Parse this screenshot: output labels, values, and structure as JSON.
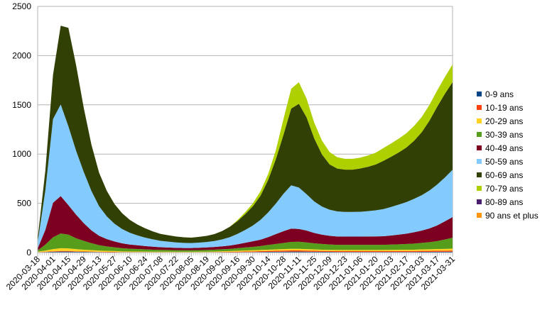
{
  "chart_data": {
    "type": "area",
    "stacked": true,
    "title": "",
    "xlabel": "",
    "ylabel": "",
    "ylim": [
      0,
      2500
    ],
    "yticks": [
      0,
      500,
      1000,
      1500,
      2000,
      2500
    ],
    "grid": "horizontal",
    "legend_position": "right",
    "x_tick_labels": [
      "2020-03-18",
      "2020-04-01",
      "2020-04-15",
      "2020-04-29",
      "2020-05-13",
      "2020-05-27",
      "2020-06-10",
      "2020-06-24",
      "2020-07-08",
      "2020-07-22",
      "2020-08-05",
      "2020-08-19",
      "2020-09-02",
      "2020-09-16",
      "2020-09-30",
      "2020-10-14",
      "2020-10-28",
      "2020-11-11",
      "2020-11-25",
      "2020-12-09",
      "2020-12-23",
      "2021-01-06",
      "2021-01-20",
      "2021-02-03",
      "2021-02-17",
      "2021-03-03",
      "2021-03-17",
      "2021-03-31"
    ],
    "x": [
      "2020-03-18",
      "2020-03-25",
      "2020-04-01",
      "2020-04-08",
      "2020-04-15",
      "2020-04-22",
      "2020-04-29",
      "2020-05-06",
      "2020-05-13",
      "2020-05-20",
      "2020-05-27",
      "2020-06-03",
      "2020-06-10",
      "2020-06-17",
      "2020-06-24",
      "2020-07-01",
      "2020-07-08",
      "2020-07-15",
      "2020-07-22",
      "2020-07-29",
      "2020-08-05",
      "2020-08-12",
      "2020-08-19",
      "2020-08-26",
      "2020-09-02",
      "2020-09-09",
      "2020-09-16",
      "2020-09-23",
      "2020-09-30",
      "2020-10-07",
      "2020-10-14",
      "2020-10-21",
      "2020-10-28",
      "2020-11-04",
      "2020-11-11",
      "2020-11-18",
      "2020-11-25",
      "2020-12-02",
      "2020-12-09",
      "2020-12-16",
      "2020-12-23",
      "2020-12-30",
      "2021-01-06",
      "2021-01-13",
      "2021-01-20",
      "2021-01-27",
      "2021-02-03",
      "2021-02-10",
      "2021-02-17",
      "2021-02-24",
      "2021-03-03",
      "2021-03-10",
      "2021-03-17",
      "2021-03-24",
      "2021-03-31"
    ],
    "series": [
      {
        "name": "0-9 ans",
        "color": "#004586",
        "values": [
          2,
          5,
          8,
          10,
          10,
          8,
          7,
          6,
          5,
          4,
          4,
          3,
          3,
          3,
          3,
          2,
          2,
          2,
          2,
          2,
          2,
          2,
          2,
          2,
          3,
          3,
          4,
          5,
          5,
          6,
          7,
          8,
          9,
          10,
          10,
          9,
          8,
          7,
          7,
          6,
          6,
          6,
          6,
          6,
          6,
          6,
          6,
          6,
          6,
          6,
          7,
          7,
          8,
          8,
          9
        ]
      },
      {
        "name": "10-19 ans",
        "color": "#ff420e",
        "values": [
          2,
          3,
          5,
          6,
          6,
          5,
          4,
          4,
          3,
          3,
          3,
          2,
          2,
          2,
          2,
          2,
          2,
          2,
          2,
          2,
          2,
          2,
          2,
          3,
          3,
          4,
          5,
          6,
          7,
          8,
          9,
          10,
          11,
          12,
          12,
          11,
          10,
          9,
          8,
          8,
          8,
          8,
          8,
          8,
          8,
          8,
          8,
          9,
          9,
          9,
          10,
          10,
          11,
          11,
          12
        ]
      },
      {
        "name": "20-29 ans",
        "color": "#ffd320",
        "values": [
          5,
          12,
          22,
          28,
          26,
          22,
          18,
          15,
          12,
          10,
          8,
          7,
          6,
          6,
          5,
          5,
          5,
          5,
          4,
          4,
          4,
          5,
          5,
          6,
          7,
          8,
          9,
          10,
          11,
          12,
          13,
          14,
          15,
          16,
          16,
          15,
          14,
          13,
          12,
          12,
          12,
          12,
          12,
          12,
          12,
          12,
          13,
          13,
          14,
          14,
          15,
          16,
          17,
          18,
          19
        ]
      },
      {
        "name": "30-39 ans",
        "color": "#579d1c",
        "values": [
          12,
          60,
          120,
          150,
          140,
          110,
          90,
          70,
          55,
          45,
          38,
          32,
          28,
          25,
          22,
          20,
          18,
          17,
          16,
          15,
          15,
          16,
          17,
          18,
          20,
          22,
          26,
          30,
          35,
          40,
          48,
          55,
          62,
          70,
          72,
          68,
          62,
          58,
          55,
          52,
          52,
          52,
          52,
          52,
          52,
          52,
          54,
          56,
          58,
          62,
          66,
          72,
          80,
          95,
          110
        ]
      },
      {
        "name": "40-49 ans",
        "color": "#7e0021",
        "values": [
          20,
          150,
          350,
          380,
          300,
          240,
          180,
          130,
          95,
          75,
          60,
          50,
          42,
          38,
          34,
          30,
          27,
          25,
          24,
          23,
          23,
          24,
          26,
          28,
          30,
          34,
          40,
          48,
          56,
          65,
          80,
          100,
          120,
          135,
          130,
          120,
          105,
          95,
          88,
          85,
          84,
          84,
          84,
          85,
          86,
          88,
          92,
          98,
          105,
          115,
          125,
          140,
          160,
          185,
          210
        ]
      },
      {
        "name": "50-59 ans",
        "color": "#83caff",
        "values": [
          60,
          400,
          850,
          930,
          800,
          650,
          520,
          400,
          300,
          230,
          180,
          145,
          120,
          100,
          85,
          75,
          65,
          60,
          55,
          52,
          50,
          52,
          55,
          60,
          70,
          85,
          105,
          130,
          160,
          200,
          250,
          310,
          380,
          440,
          420,
          370,
          320,
          285,
          265,
          255,
          250,
          250,
          252,
          258,
          265,
          275,
          290,
          305,
          320,
          340,
          360,
          385,
          415,
          445,
          480
        ]
      },
      {
        "name": "60-69 ans",
        "color": "#314004",
        "values": [
          40,
          200,
          450,
          800,
          1000,
          870,
          650,
          470,
          340,
          260,
          200,
          160,
          130,
          110,
          95,
          80,
          70,
          65,
          60,
          57,
          55,
          58,
          62,
          70,
          85,
          105,
          130,
          160,
          195,
          245,
          330,
          450,
          600,
          780,
          850,
          780,
          640,
          530,
          460,
          435,
          430,
          430,
          440,
          450,
          465,
          490,
          510,
          530,
          555,
          590,
          640,
          710,
          790,
          850,
          890
        ]
      },
      {
        "name": "70-79 ans",
        "color": "#aecf00",
        "values": [
          0,
          0,
          0,
          0,
          0,
          0,
          0,
          0,
          0,
          0,
          0,
          0,
          0,
          0,
          0,
          0,
          0,
          0,
          0,
          0,
          0,
          0,
          0,
          0,
          0,
          0,
          10,
          20,
          30,
          45,
          60,
          90,
          160,
          200,
          220,
          190,
          160,
          140,
          125,
          115,
          110,
          110,
          110,
          115,
          120,
          130,
          135,
          140,
          145,
          150,
          155,
          160,
          165,
          170,
          180
        ]
      },
      {
        "name": "80-89 ans",
        "color": "#4b1f6f",
        "values": [
          0,
          0,
          0,
          0,
          0,
          0,
          0,
          0,
          0,
          0,
          0,
          0,
          0,
          0,
          0,
          0,
          0,
          0,
          0,
          0,
          0,
          0,
          0,
          0,
          0,
          0,
          0,
          0,
          0,
          0,
          0,
          0,
          0,
          0,
          0,
          0,
          0,
          0,
          0,
          0,
          0,
          0,
          0,
          0,
          0,
          0,
          0,
          0,
          0,
          0,
          0,
          0,
          0,
          0,
          0
        ]
      },
      {
        "name": "90 ans et plus",
        "color": "#ff950e",
        "values": [
          0,
          0,
          0,
          0,
          0,
          0,
          0,
          0,
          0,
          0,
          0,
          0,
          0,
          0,
          0,
          0,
          0,
          0,
          0,
          0,
          0,
          0,
          0,
          0,
          0,
          0,
          0,
          0,
          0,
          0,
          0,
          0,
          0,
          0,
          0,
          0,
          0,
          0,
          0,
          0,
          0,
          0,
          0,
          0,
          0,
          0,
          0,
          0,
          0,
          0,
          0,
          0,
          0,
          0,
          0
        ]
      }
    ]
  }
}
